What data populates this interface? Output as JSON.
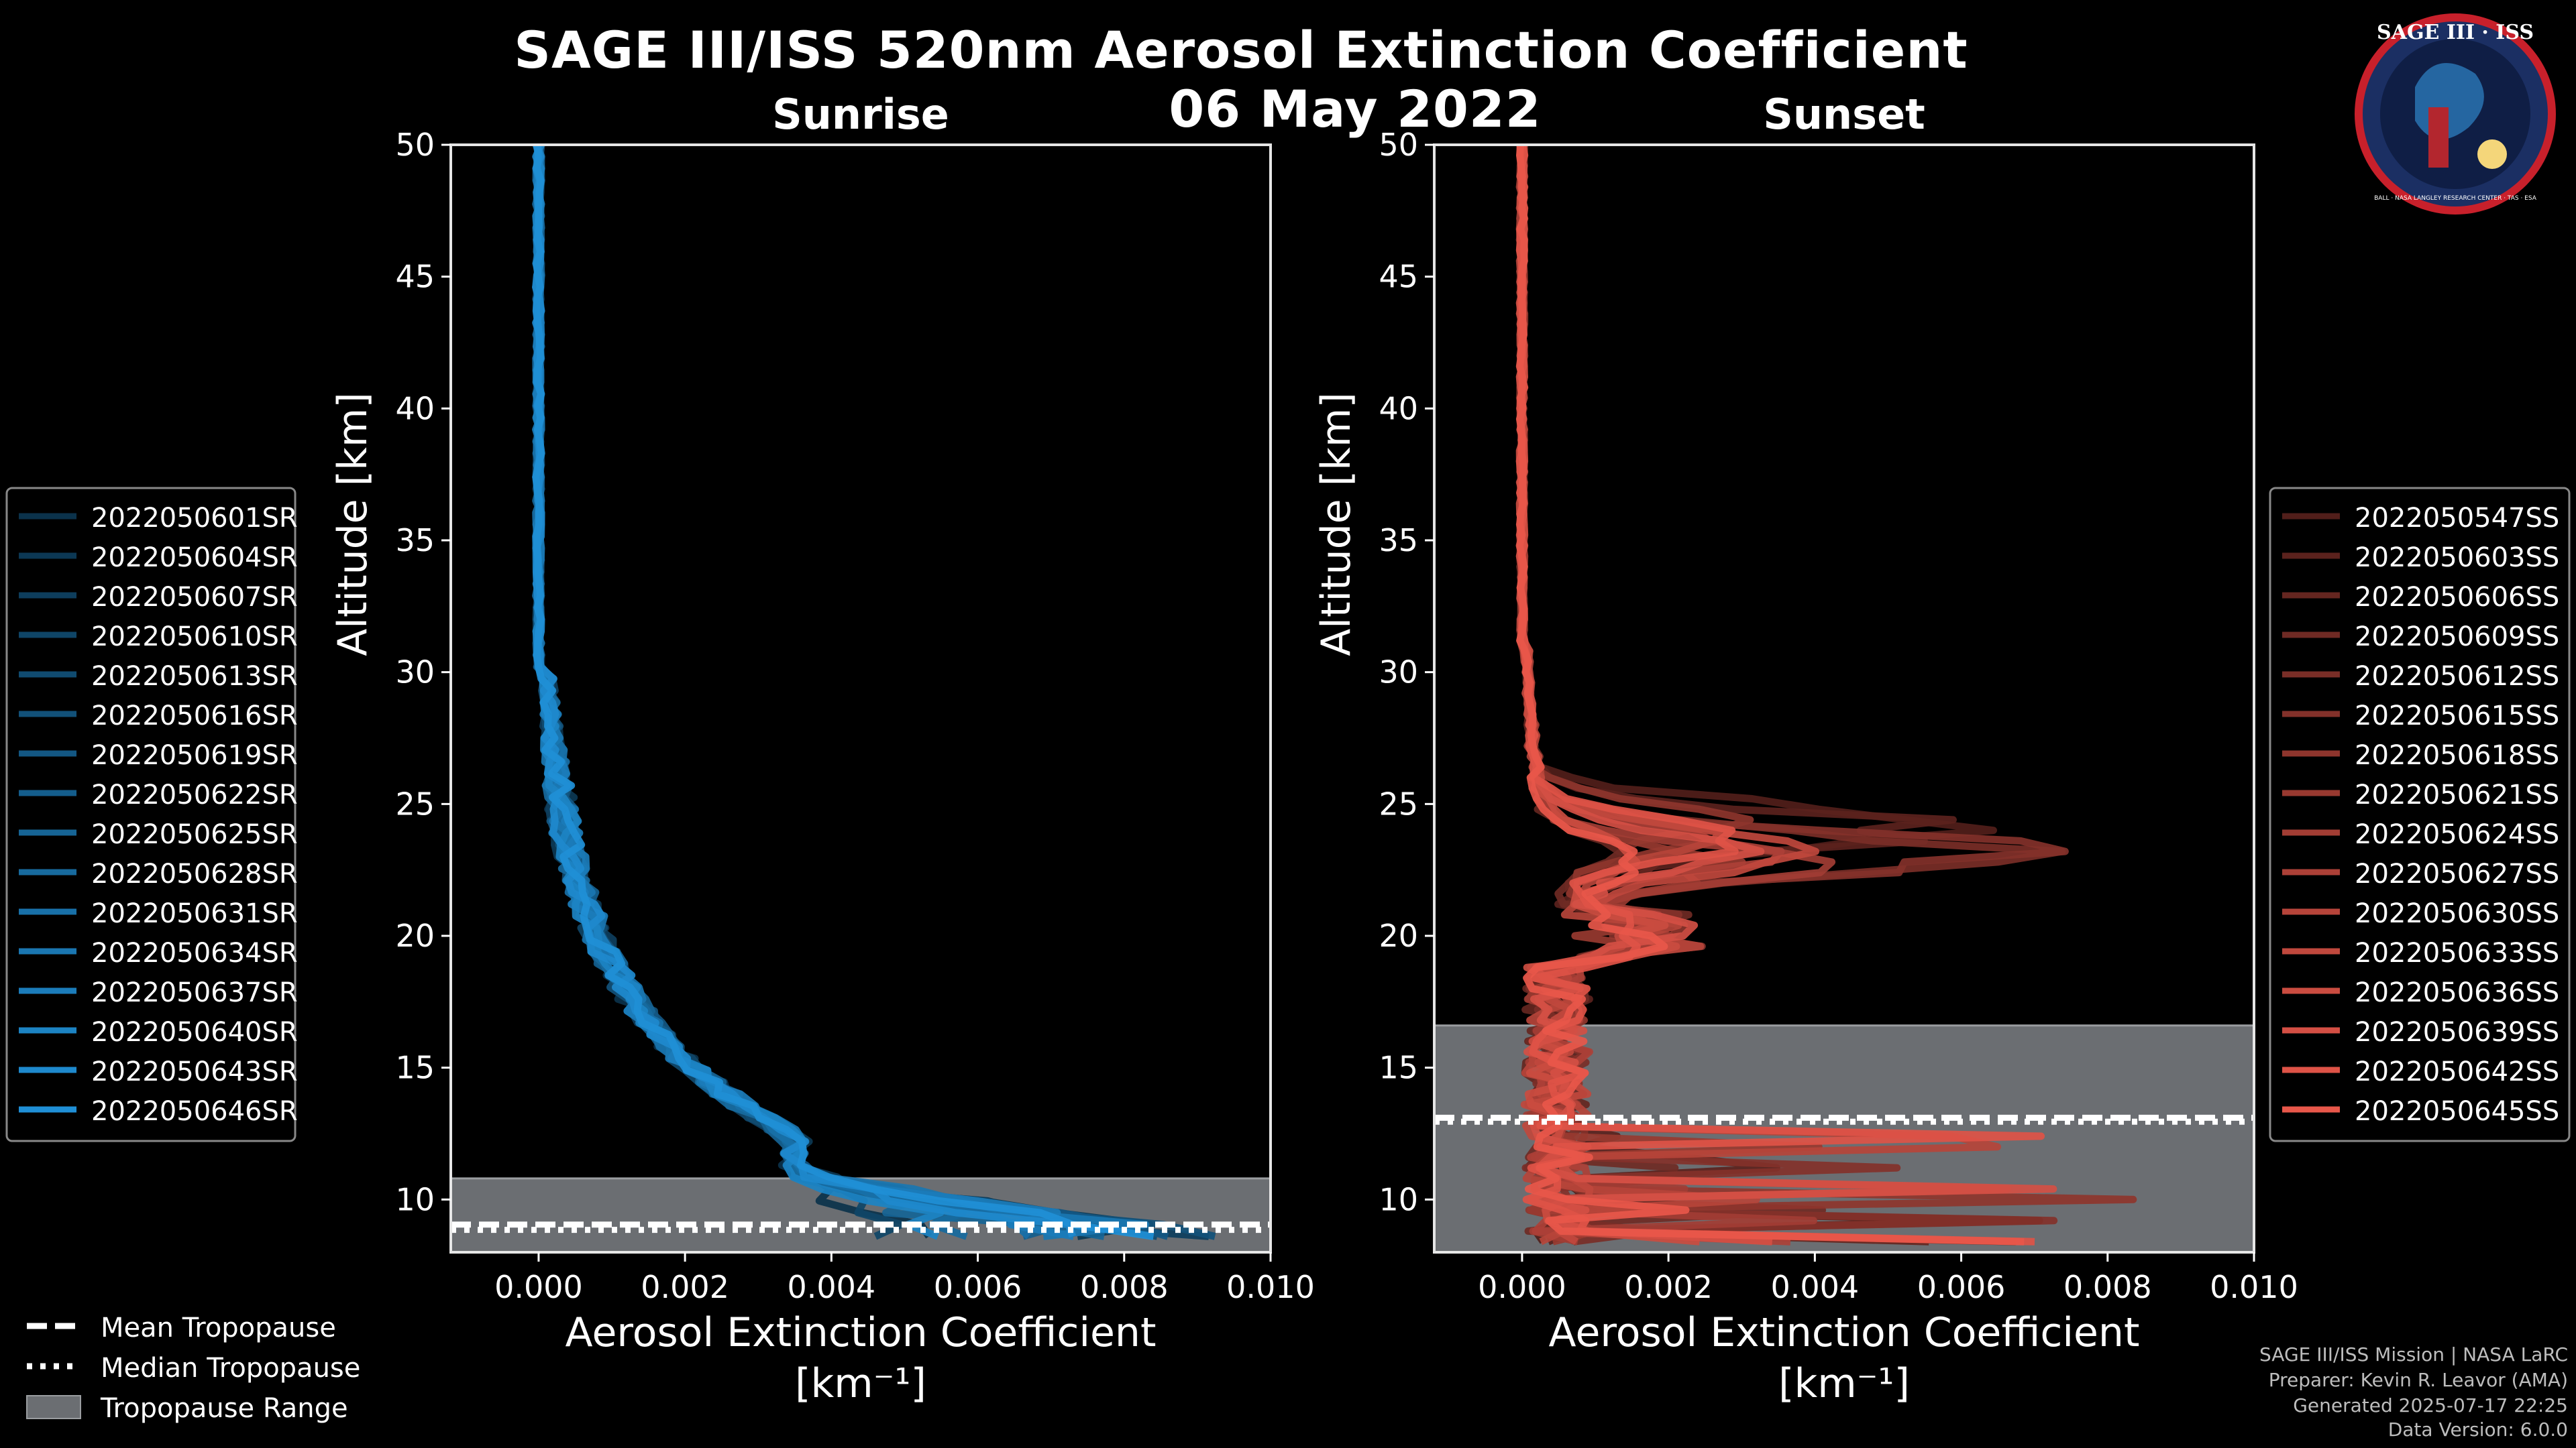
{
  "title": "SAGE III/ISS 520nm Aerosol Extinction Coefficient",
  "date": "06 May 2022",
  "logo": {
    "text": "SAGE III · ISS",
    "ring_text": "BALL · NASA LANGLEY RESEARCH CENTER · TAS · ESA",
    "accent": "#c8202b"
  },
  "footer": {
    "line1": "SAGE III/ISS Mission | NASA LaRC",
    "line2": "Preparer: Kevin R. Leavor (AMA)",
    "line3": "Generated 2025-07-17 22:25",
    "line4": "Data Version: 6.0.0"
  },
  "tropo_legend": {
    "mean": "Mean Tropopause",
    "median": "Median Tropopause",
    "range": "Tropopause Range"
  },
  "chart_data": [
    {
      "type": "line",
      "title": "Sunrise",
      "xlabel": "Aerosol Extinction Coefficient",
      "xlabel_units": "[km⁻¹]",
      "ylabel": "Altitude [km]",
      "xlim": [
        -0.0012,
        0.01
      ],
      "ylim": [
        8,
        50
      ],
      "xticks": [
        0.0,
        0.002,
        0.004,
        0.006,
        0.008,
        0.01
      ],
      "xtick_labels": [
        "0.000",
        "0.002",
        "0.004",
        "0.006",
        "0.008",
        "0.010"
      ],
      "yticks": [
        10,
        15,
        20,
        25,
        30,
        35,
        40,
        45,
        50
      ],
      "color": "#1f8fd6",
      "tropopause": {
        "min": 8,
        "max": 10.8,
        "mean": 9.05,
        "median": 8.85
      },
      "legend": "left",
      "series": [
        "2022050601SR",
        "2022050604SR",
        "2022050607SR",
        "2022050610SR",
        "2022050613SR",
        "2022050616SR",
        "2022050619SR",
        "2022050622SR",
        "2022050625SR",
        "2022050628SR",
        "2022050631SR",
        "2022050634SR",
        "2022050637SR",
        "2022050640SR",
        "2022050643SR",
        "2022050646SR"
      ]
    },
    {
      "type": "line",
      "title": "Sunset",
      "xlabel": "Aerosol Extinction Coefficient",
      "xlabel_units": "[km⁻¹]",
      "ylabel": "Altitude [km]",
      "xlim": [
        -0.0012,
        0.01
      ],
      "ylim": [
        8,
        50
      ],
      "xticks": [
        0.0,
        0.002,
        0.004,
        0.006,
        0.008,
        0.01
      ],
      "xtick_labels": [
        "0.000",
        "0.002",
        "0.004",
        "0.006",
        "0.008",
        "0.010"
      ],
      "yticks": [
        10,
        15,
        20,
        25,
        30,
        35,
        40,
        45,
        50
      ],
      "color": "#e8574a",
      "tropopause": {
        "min": 8,
        "max": 16.6,
        "mean": 13.1,
        "median": 12.95
      },
      "legend": "right",
      "series": [
        "2022050547SS",
        "2022050603SS",
        "2022050606SS",
        "2022050609SS",
        "2022050612SS",
        "2022050615SS",
        "2022050618SS",
        "2022050621SS",
        "2022050624SS",
        "2022050627SS",
        "2022050630SS",
        "2022050633SS",
        "2022050636SS",
        "2022050639SS",
        "2022050642SS",
        "2022050645SS"
      ]
    }
  ]
}
